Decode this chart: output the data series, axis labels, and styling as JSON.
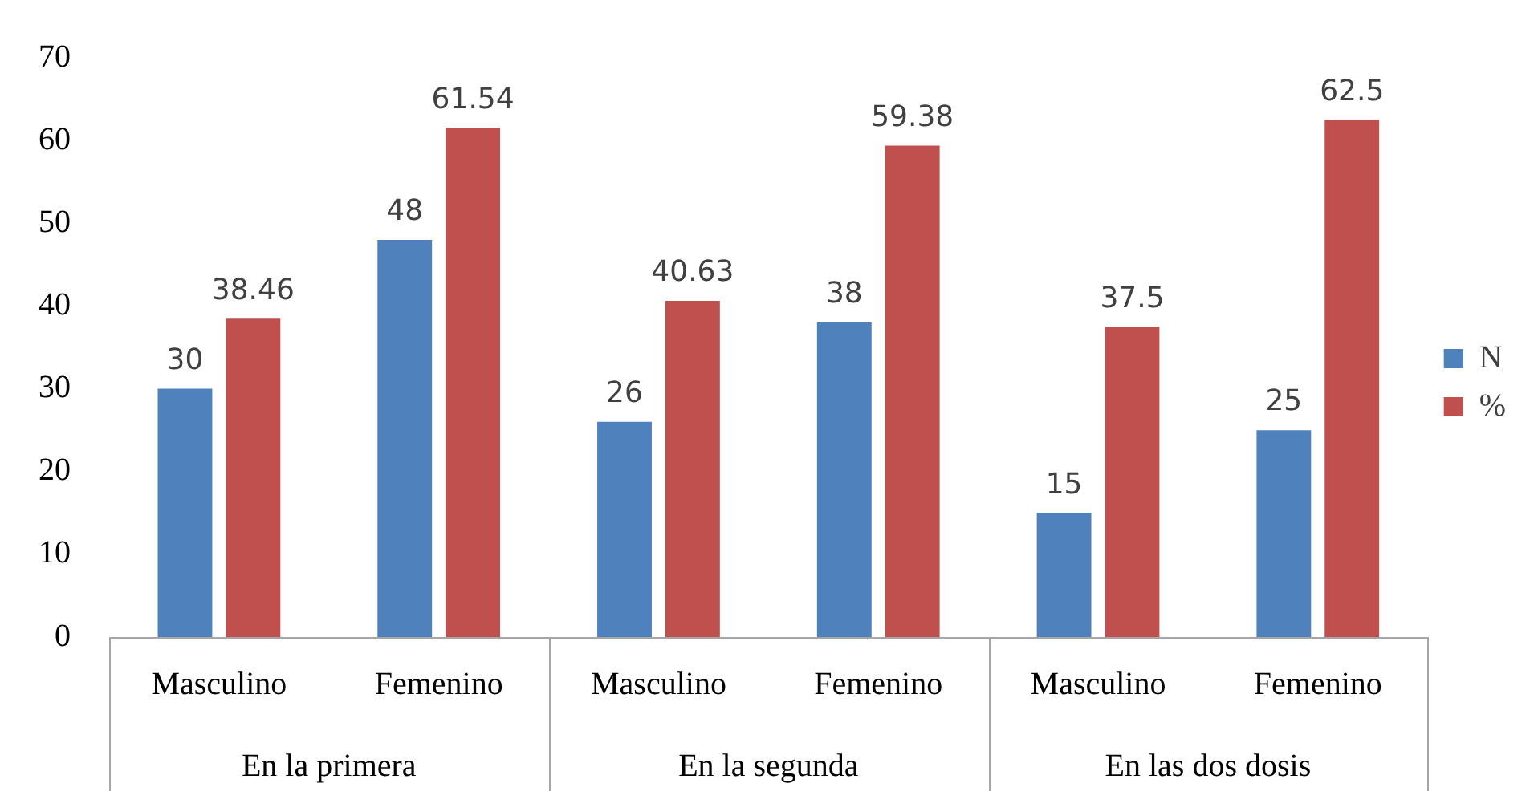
{
  "chart_data": {
    "type": "bar",
    "categories": [
      "Masculino",
      "Femenino",
      "Masculino",
      "Femenino",
      "Masculino",
      "Femenino"
    ],
    "series": [
      {
        "name": "N",
        "color": "#4f81bd",
        "values": [
          30,
          48,
          26,
          38,
          15,
          25
        ]
      },
      {
        "name": "%",
        "color": "#c0504d",
        "values": [
          38.46,
          61.54,
          40.63,
          59.38,
          37.5,
          62.5
        ]
      }
    ],
    "ylim": [
      0,
      70
    ],
    "yticks": [
      0,
      10,
      20,
      30,
      40,
      50,
      60,
      70
    ],
    "grid": false,
    "legend": "right",
    "data_labels": true,
    "annotations": [
      "En la primera",
      "En la segunda",
      "En las dos dosis"
    ]
  }
}
